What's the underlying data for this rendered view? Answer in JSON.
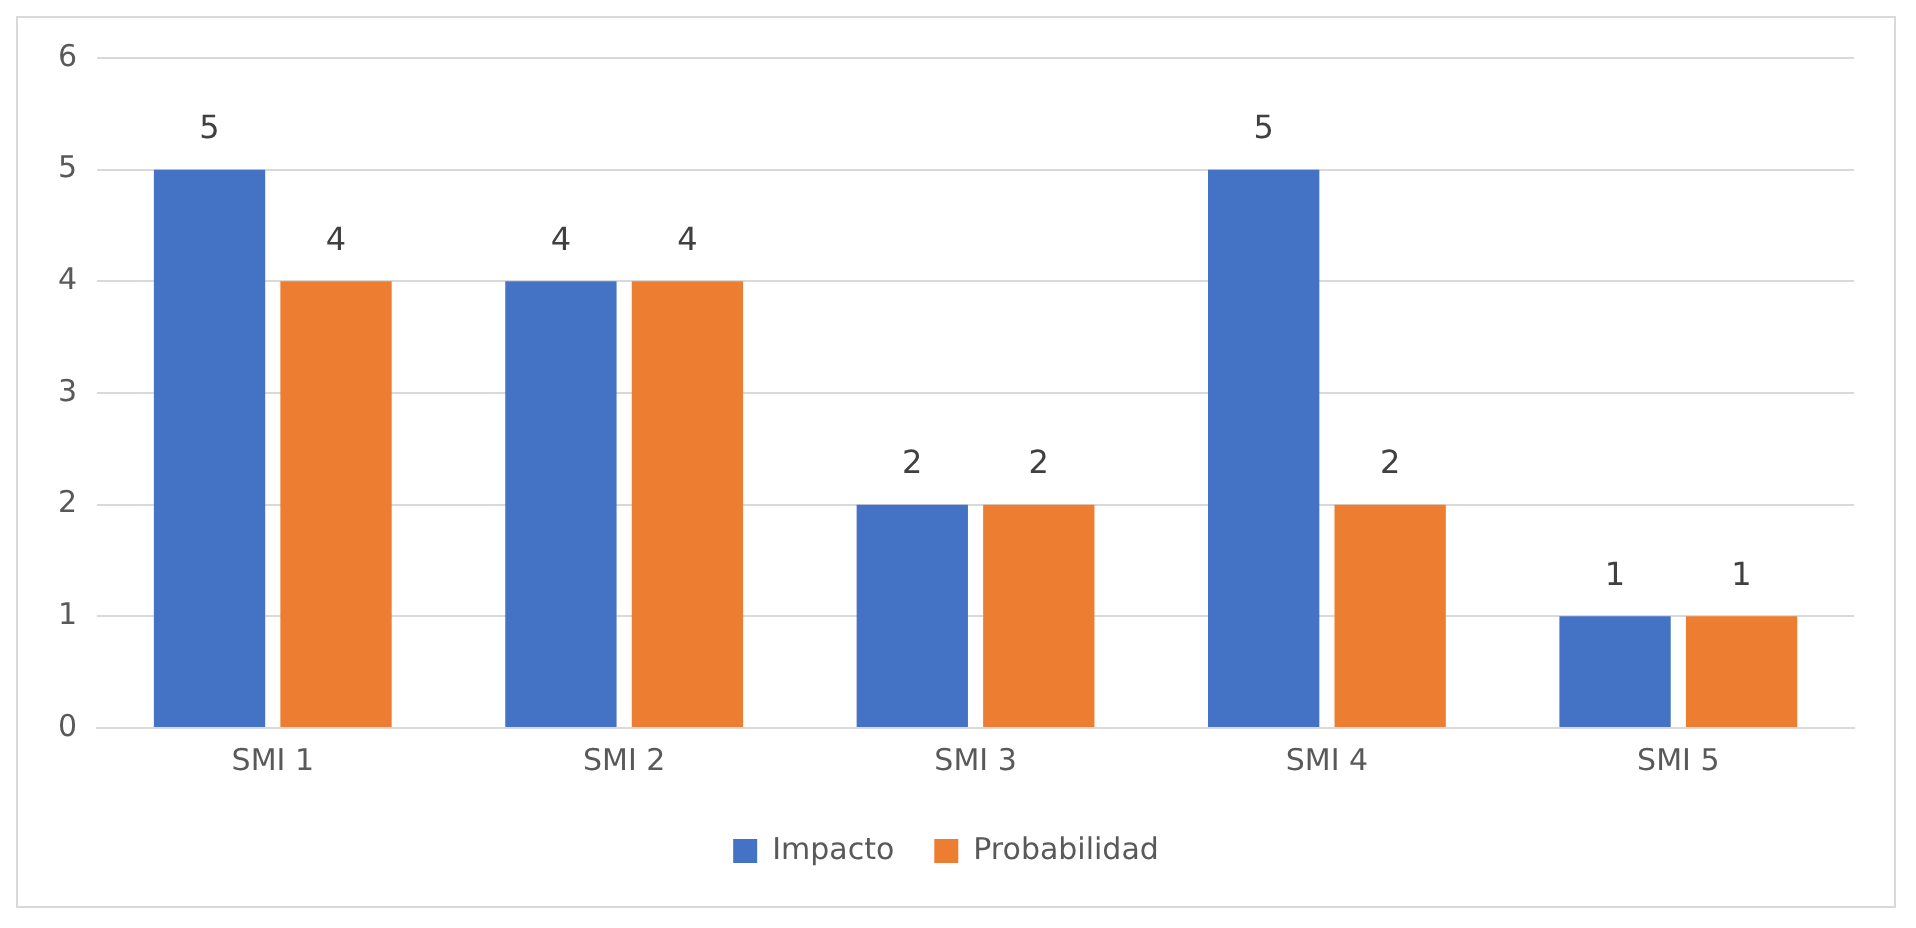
{
  "chart_data": {
    "type": "bar",
    "categories": [
      "SMI 1",
      "SMI 2",
      "SMI 3",
      "SMI 4",
      "SMI 5"
    ],
    "series": [
      {
        "name": "Impacto",
        "color": "#4472c4",
        "values": [
          5,
          4,
          2,
          5,
          1
        ]
      },
      {
        "name": "Probabilidad",
        "color": "#ed7d31",
        "values": [
          4,
          4,
          2,
          2,
          1
        ]
      }
    ],
    "ylim": [
      0,
      6
    ],
    "yticks": [
      0,
      1,
      2,
      3,
      4,
      5,
      6
    ],
    "grid": "y",
    "legend": "bottom",
    "data_labels": true
  }
}
